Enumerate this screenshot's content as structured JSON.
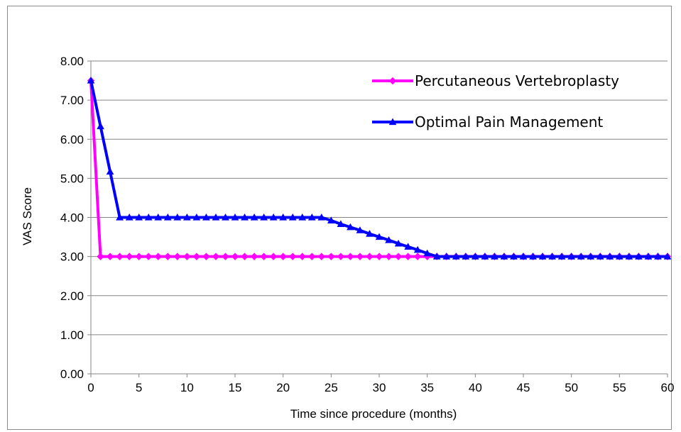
{
  "chart_data": {
    "type": "line",
    "title": "",
    "xlabel": "Time since procedure (months)",
    "ylabel": "VAS Score",
    "xlim": [
      0,
      60
    ],
    "ylim": [
      0,
      8
    ],
    "x_ticks": [
      0,
      5,
      10,
      15,
      20,
      25,
      30,
      35,
      40,
      45,
      50,
      55,
      60
    ],
    "x_tick_labels": [
      "0",
      "5",
      "10",
      "15",
      "20",
      "25",
      "30",
      "35",
      "40",
      "45",
      "50",
      "55",
      "60"
    ],
    "y_ticks": [
      0,
      1,
      2,
      3,
      4,
      5,
      6,
      7,
      8
    ],
    "y_tick_labels": [
      "0.00",
      "1.00",
      "2.00",
      "3.00",
      "4.00",
      "5.00",
      "6.00",
      "7.00",
      "8.00"
    ],
    "grid": "horizontal",
    "legend_position": "top-right",
    "series": [
      {
        "name": "Percutaneous Vertebroplasty",
        "color": "#FF00FF",
        "marker": "diamond",
        "x": [
          0,
          1,
          2,
          3,
          4,
          5,
          6,
          7,
          8,
          9,
          10,
          11,
          12,
          13,
          14,
          15,
          16,
          17,
          18,
          19,
          20,
          21,
          22,
          23,
          24,
          25,
          26,
          27,
          28,
          29,
          30,
          31,
          32,
          33,
          34,
          35,
          36,
          37,
          38,
          39,
          40,
          41,
          42,
          43,
          44,
          45,
          46,
          47,
          48,
          49,
          50,
          51,
          52,
          53,
          54,
          55,
          56,
          57,
          58,
          59,
          60
        ],
        "values": [
          7.5,
          3,
          3,
          3,
          3,
          3,
          3,
          3,
          3,
          3,
          3,
          3,
          3,
          3,
          3,
          3,
          3,
          3,
          3,
          3,
          3,
          3,
          3,
          3,
          3,
          3,
          3,
          3,
          3,
          3,
          3,
          3,
          3,
          3,
          3,
          3,
          3,
          3,
          3,
          3,
          3,
          3,
          3,
          3,
          3,
          3,
          3,
          3,
          3,
          3,
          3,
          3,
          3,
          3,
          3,
          3,
          3,
          3,
          3,
          3,
          3
        ]
      },
      {
        "name": "Optimal Pain Management",
        "color": "#0000FF",
        "marker": "triangle",
        "x": [
          0,
          1,
          2,
          3,
          4,
          5,
          6,
          7,
          8,
          9,
          10,
          11,
          12,
          13,
          14,
          15,
          16,
          17,
          18,
          19,
          20,
          21,
          22,
          23,
          24,
          25,
          26,
          27,
          28,
          29,
          30,
          31,
          32,
          33,
          34,
          35,
          36,
          37,
          38,
          39,
          40,
          41,
          42,
          43,
          44,
          45,
          46,
          47,
          48,
          49,
          50,
          51,
          52,
          53,
          54,
          55,
          56,
          57,
          58,
          59,
          60
        ],
        "values": [
          7.5,
          6.33,
          5.17,
          4,
          4,
          4,
          4,
          4,
          4,
          4,
          4,
          4,
          4,
          4,
          4,
          4,
          4,
          4,
          4,
          4,
          4,
          4,
          4,
          4,
          4,
          3.92,
          3.83,
          3.75,
          3.67,
          3.58,
          3.5,
          3.42,
          3.33,
          3.25,
          3.17,
          3.08,
          3,
          3,
          3,
          3,
          3,
          3,
          3,
          3,
          3,
          3,
          3,
          3,
          3,
          3,
          3,
          3,
          3,
          3,
          3,
          3,
          3,
          3,
          3,
          3,
          3
        ]
      }
    ]
  }
}
